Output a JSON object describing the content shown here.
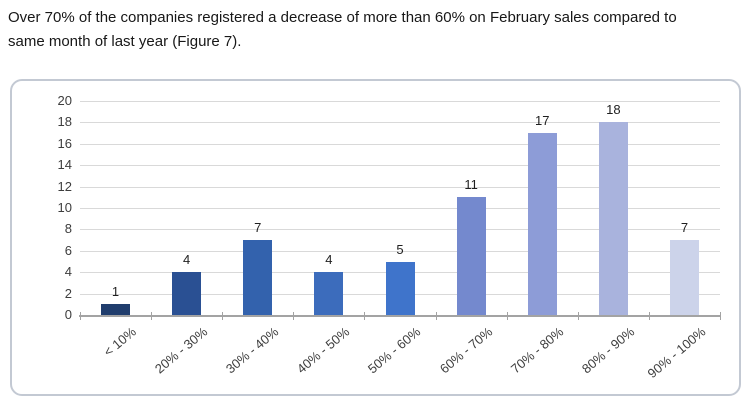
{
  "intro": {
    "line1": "Over 70% of the companies registered a decrease of more than 60% on February sales compared to",
    "line2": "same month of last year (Figure 7)."
  },
  "chart_data": {
    "type": "bar",
    "title": "",
    "xlabel": "",
    "ylabel": "",
    "categories": [
      "< 10%",
      "20% - 30%",
      "30% - 40%",
      "40% - 50%",
      "50% - 60%",
      "60% - 70%",
      "70% - 80%",
      "80% - 90%",
      "90% - 100%"
    ],
    "values": [
      1,
      4,
      7,
      4,
      5,
      11,
      17,
      18,
      7
    ],
    "bar_colors": [
      "#203d6d",
      "#2a5093",
      "#3362ad",
      "#3c6cbc",
      "#3f74cb",
      "#7489ce",
      "#8d9cd7",
      "#a9b3dd",
      "#ccd3ea"
    ],
    "ylim": [
      0,
      20
    ],
    "yticks": [
      0,
      2,
      4,
      6,
      8,
      10,
      12,
      14,
      16,
      18,
      20
    ],
    "grid": true,
    "legend": false,
    "colors": {
      "gridline": "#d9d9d9",
      "axis": "#a3a3a3",
      "tick_label": "#3d3d3d",
      "value_label": "#1f1f1f",
      "frame_border": "#c3c9d3",
      "background": "#ffffff"
    }
  }
}
